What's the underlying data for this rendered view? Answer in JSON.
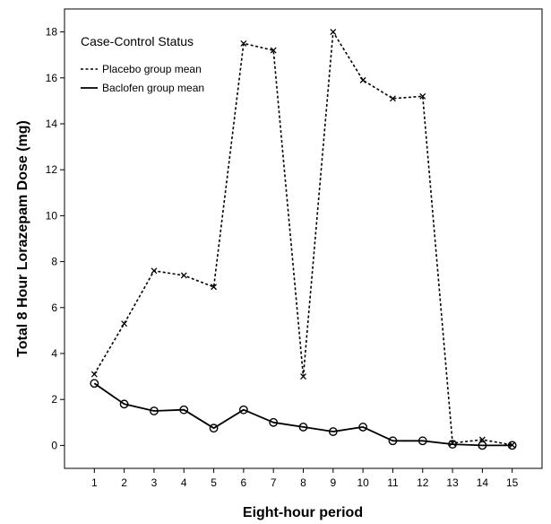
{
  "chart_data": {
    "type": "line",
    "xlabel": "Eight-hour period",
    "ylabel": "Total 8 Hour Lorazepam Dose (mg)",
    "x": [
      1,
      2,
      3,
      4,
      5,
      6,
      7,
      8,
      9,
      10,
      11,
      12,
      13,
      14,
      15
    ],
    "xlim": [
      0,
      16
    ],
    "ylim": [
      -1,
      19
    ],
    "yticks": [
      0,
      2,
      4,
      6,
      8,
      10,
      12,
      14,
      16,
      18
    ],
    "grid": false,
    "legend": {
      "title": "Case-Control Status",
      "position": "top-left"
    },
    "series": [
      {
        "name": "Placebo group mean",
        "line_style": "dashed",
        "marker": "x",
        "color": "#000000",
        "values": [
          3.1,
          5.3,
          7.6,
          7.4,
          6.9,
          17.5,
          17.2,
          3.0,
          18.0,
          15.9,
          15.1,
          15.2,
          0.1,
          0.25,
          0.02
        ]
      },
      {
        "name": "Baclofen group mean",
        "line_style": "solid",
        "marker": "circle",
        "color": "#000000",
        "values": [
          2.7,
          1.8,
          1.5,
          1.55,
          0.75,
          1.55,
          1.0,
          0.8,
          0.6,
          0.8,
          0.2,
          0.2,
          0.05,
          0.0,
          0.0
        ]
      }
    ]
  }
}
